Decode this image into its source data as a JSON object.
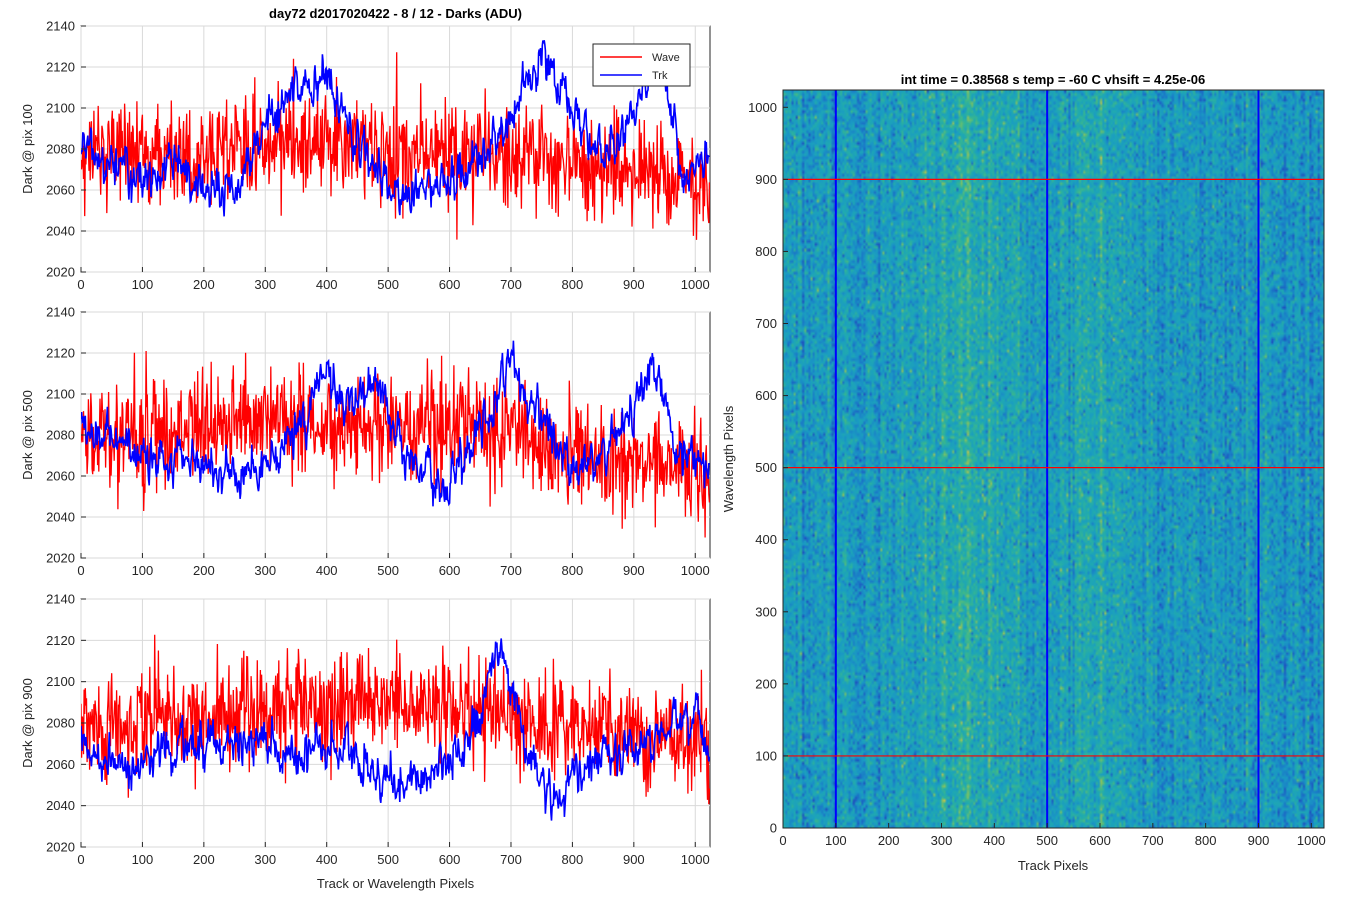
{
  "chart_data": [
    {
      "type": "line",
      "title": "day72 d2017020422 - 8 / 12 - Darks (ADU)",
      "ylabel": "Dark @ pix 100",
      "xlabel": "",
      "xlim": [
        0,
        1024
      ],
      "ylim": [
        2020,
        2140
      ],
      "xticks": [
        0,
        100,
        200,
        300,
        400,
        500,
        600,
        700,
        800,
        900,
        1000
      ],
      "yticks": [
        2020,
        2040,
        2060,
        2080,
        2100,
        2120,
        2140
      ],
      "grid": true,
      "legend": {
        "placement": "top-right",
        "entries": [
          "Wave",
          "Trk"
        ]
      },
      "series": [
        {
          "name": "Wave",
          "color": "#ff0000",
          "n_points": 1024,
          "value_range": [
            2032,
            2128
          ],
          "mean": 2080,
          "envelope": [
            {
              "x": 0,
              "y": 2078
            },
            {
              "x": 100,
              "y": 2080
            },
            {
              "x": 200,
              "y": 2080
            },
            {
              "x": 300,
              "y": 2082
            },
            {
              "x": 400,
              "y": 2085
            },
            {
              "x": 500,
              "y": 2078
            },
            {
              "x": 600,
              "y": 2078
            },
            {
              "x": 700,
              "y": 2076
            },
            {
              "x": 800,
              "y": 2072
            },
            {
              "x": 900,
              "y": 2068
            },
            {
              "x": 1024,
              "y": 2062
            }
          ]
        },
        {
          "name": "Trk",
          "color": "#0000ff",
          "n_points": 1024,
          "value_range": [
            2037,
            2133
          ],
          "profile": [
            {
              "x": 0,
              "y": 2082
            },
            {
              "x": 50,
              "y": 2075
            },
            {
              "x": 100,
              "y": 2065
            },
            {
              "x": 150,
              "y": 2075
            },
            {
              "x": 200,
              "y": 2058
            },
            {
              "x": 250,
              "y": 2062
            },
            {
              "x": 300,
              "y": 2090
            },
            {
              "x": 350,
              "y": 2108
            },
            {
              "x": 400,
              "y": 2112
            },
            {
              "x": 450,
              "y": 2085
            },
            {
              "x": 500,
              "y": 2062
            },
            {
              "x": 550,
              "y": 2060
            },
            {
              "x": 600,
              "y": 2065
            },
            {
              "x": 650,
              "y": 2078
            },
            {
              "x": 700,
              "y": 2098
            },
            {
              "x": 750,
              "y": 2128
            },
            {
              "x": 800,
              "y": 2100
            },
            {
              "x": 850,
              "y": 2075
            },
            {
              "x": 900,
              "y": 2095
            },
            {
              "x": 940,
              "y": 2128
            },
            {
              "x": 980,
              "y": 2065
            },
            {
              "x": 1024,
              "y": 2080
            }
          ]
        }
      ]
    },
    {
      "type": "line",
      "title": "",
      "ylabel": "Dark @ pix 500",
      "xlabel": "",
      "xlim": [
        0,
        1024
      ],
      "ylim": [
        2020,
        2140
      ],
      "xticks": [
        0,
        100,
        200,
        300,
        400,
        500,
        600,
        700,
        800,
        900,
        1000
      ],
      "yticks": [
        2020,
        2040,
        2060,
        2080,
        2100,
        2120,
        2140
      ],
      "grid": true,
      "series": [
        {
          "name": "Wave",
          "color": "#ff0000",
          "n_points": 1024,
          "value_range": [
            2030,
            2130
          ],
          "mean": 2082,
          "envelope": [
            {
              "x": 0,
              "y": 2078
            },
            {
              "x": 100,
              "y": 2080
            },
            {
              "x": 200,
              "y": 2085
            },
            {
              "x": 300,
              "y": 2088
            },
            {
              "x": 400,
              "y": 2084
            },
            {
              "x": 500,
              "y": 2086
            },
            {
              "x": 600,
              "y": 2080
            },
            {
              "x": 700,
              "y": 2080
            },
            {
              "x": 800,
              "y": 2072
            },
            {
              "x": 900,
              "y": 2070
            },
            {
              "x": 1024,
              "y": 2062
            }
          ]
        },
        {
          "name": "Trk",
          "color": "#0000ff",
          "n_points": 1024,
          "value_range": [
            2040,
            2126
          ],
          "profile": [
            {
              "x": 0,
              "y": 2085
            },
            {
              "x": 50,
              "y": 2078
            },
            {
              "x": 100,
              "y": 2068
            },
            {
              "x": 200,
              "y": 2065
            },
            {
              "x": 250,
              "y": 2060
            },
            {
              "x": 300,
              "y": 2062
            },
            {
              "x": 350,
              "y": 2080
            },
            {
              "x": 400,
              "y": 2112
            },
            {
              "x": 430,
              "y": 2088
            },
            {
              "x": 480,
              "y": 2110
            },
            {
              "x": 520,
              "y": 2075
            },
            {
              "x": 580,
              "y": 2052
            },
            {
              "x": 640,
              "y": 2075
            },
            {
              "x": 700,
              "y": 2115
            },
            {
              "x": 750,
              "y": 2082
            },
            {
              "x": 800,
              "y": 2062
            },
            {
              "x": 850,
              "y": 2068
            },
            {
              "x": 900,
              "y": 2090
            },
            {
              "x": 930,
              "y": 2120
            },
            {
              "x": 970,
              "y": 2072
            },
            {
              "x": 1024,
              "y": 2068
            }
          ]
        }
      ]
    },
    {
      "type": "line",
      "title": "",
      "ylabel": "Dark @ pix 900",
      "xlabel": "Track or Wavelength Pixels",
      "xlim": [
        0,
        1024
      ],
      "ylim": [
        2020,
        2140
      ],
      "xticks": [
        0,
        100,
        200,
        300,
        400,
        500,
        600,
        700,
        800,
        900,
        1000
      ],
      "yticks": [
        2020,
        2040,
        2060,
        2080,
        2100,
        2120,
        2140
      ],
      "grid": true,
      "series": [
        {
          "name": "Wave",
          "color": "#ff0000",
          "n_points": 1024,
          "value_range": [
            2038,
            2132
          ],
          "mean": 2084,
          "envelope": [
            {
              "x": 0,
              "y": 2080
            },
            {
              "x": 100,
              "y": 2082
            },
            {
              "x": 200,
              "y": 2082
            },
            {
              "x": 300,
              "y": 2086
            },
            {
              "x": 400,
              "y": 2088
            },
            {
              "x": 500,
              "y": 2090
            },
            {
              "x": 600,
              "y": 2088
            },
            {
              "x": 700,
              "y": 2080
            },
            {
              "x": 800,
              "y": 2078
            },
            {
              "x": 900,
              "y": 2074
            },
            {
              "x": 1024,
              "y": 2068
            }
          ]
        },
        {
          "name": "Trk",
          "color": "#0000ff",
          "n_points": 1024,
          "value_range": [
            2032,
            2122
          ],
          "profile": [
            {
              "x": 0,
              "y": 2068
            },
            {
              "x": 50,
              "y": 2058
            },
            {
              "x": 100,
              "y": 2062
            },
            {
              "x": 150,
              "y": 2068
            },
            {
              "x": 200,
              "y": 2070
            },
            {
              "x": 250,
              "y": 2072
            },
            {
              "x": 300,
              "y": 2070
            },
            {
              "x": 350,
              "y": 2062
            },
            {
              "x": 400,
              "y": 2070
            },
            {
              "x": 450,
              "y": 2060
            },
            {
              "x": 500,
              "y": 2052
            },
            {
              "x": 550,
              "y": 2055
            },
            {
              "x": 600,
              "y": 2060
            },
            {
              "x": 650,
              "y": 2082
            },
            {
              "x": 675,
              "y": 2118
            },
            {
              "x": 720,
              "y": 2075
            },
            {
              "x": 760,
              "y": 2045
            },
            {
              "x": 800,
              "y": 2050
            },
            {
              "x": 850,
              "y": 2065
            },
            {
              "x": 900,
              "y": 2068
            },
            {
              "x": 950,
              "y": 2075
            },
            {
              "x": 1000,
              "y": 2085
            },
            {
              "x": 1024,
              "y": 2062
            }
          ]
        }
      ]
    },
    {
      "type": "heatmap",
      "title": "int time = 0.38568 s    temp = -60 C    vhsift = 4.25e-06",
      "xlabel": "Track Pixels",
      "ylabel": "Wavelength Pixels",
      "xlim": [
        0,
        1024
      ],
      "ylim": [
        0,
        1024
      ],
      "xticks": [
        0,
        100,
        200,
        300,
        400,
        500,
        600,
        700,
        800,
        900,
        1000
      ],
      "yticks": [
        0,
        100,
        200,
        300,
        400,
        500,
        600,
        700,
        800,
        900,
        1000
      ],
      "colormap": [
        "#1f4fbf",
        "#1a78c8",
        "#1a9bc4",
        "#20aab0",
        "#3cb88a",
        "#8bc25e",
        "#c8c44a"
      ],
      "bright_bands_track_px": [
        350,
        600
      ],
      "vertical_markers": {
        "x": [
          100,
          500,
          900
        ],
        "color": "#0000ff"
      },
      "horizontal_markers": {
        "y": [
          100,
          500,
          900
        ],
        "color": "#ff0000"
      }
    }
  ]
}
